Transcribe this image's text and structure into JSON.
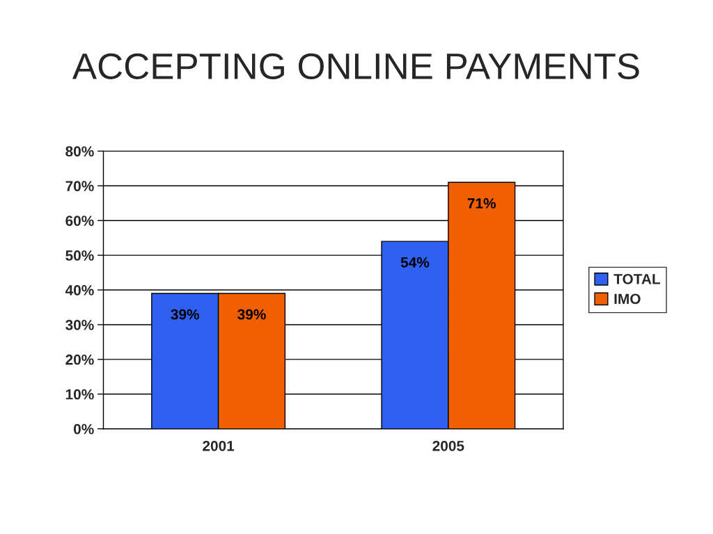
{
  "chart_data": {
    "type": "bar",
    "title": "ACCEPTING ONLINE PAYMENTS",
    "categories": [
      "2001",
      "2005"
    ],
    "series": [
      {
        "name": "TOTAL",
        "color": "#3060f0",
        "values": [
          39,
          54
        ],
        "value_labels": [
          "39%",
          "54%"
        ]
      },
      {
        "name": "IMO",
        "color": "#f06000",
        "values": [
          39,
          71
        ],
        "value_labels": [
          "39%",
          "71%"
        ]
      }
    ],
    "ylim": [
      0,
      80
    ],
    "yticks": [
      {
        "value": 0,
        "label": "0%"
      },
      {
        "value": 10,
        "label": "10%"
      },
      {
        "value": 20,
        "label": "20%"
      },
      {
        "value": 30,
        "label": "30%"
      },
      {
        "value": 40,
        "label": "40%"
      },
      {
        "value": 50,
        "label": "50%"
      },
      {
        "value": 60,
        "label": "60%"
      },
      {
        "value": 70,
        "label": "70%"
      },
      {
        "value": 80,
        "label": "80%"
      }
    ],
    "grid": "y",
    "legend": "right"
  }
}
